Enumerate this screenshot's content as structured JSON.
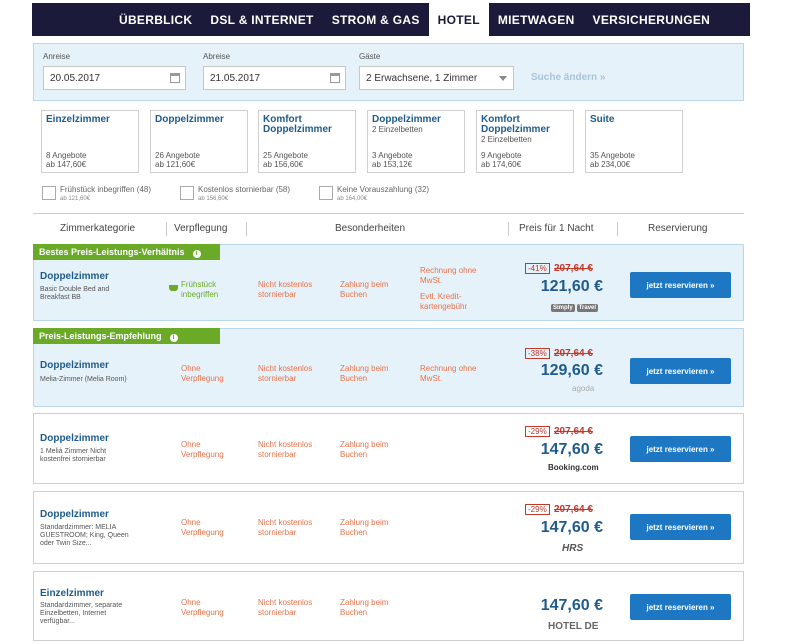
{
  "nav": {
    "tabs": [
      "ÜBERBLICK",
      "DSL & INTERNET",
      "STROM & GAS",
      "HOTEL",
      "MIETWAGEN",
      "VERSICHERUNGEN"
    ]
  },
  "search": {
    "arrival_label": "Anreise",
    "arrival_value": "20.05.2017",
    "departure_label": "Abreise",
    "departure_value": "21.05.2017",
    "guests_label": "Gäste",
    "guests_value": "2 Erwachsene, 1 Zimmer",
    "change_label": "Suche ändern »"
  },
  "room_types": [
    {
      "name": "Einzelzimmer",
      "sub": "",
      "count": "8 Angebote",
      "from": "ab 147,60€"
    },
    {
      "name": "Doppelzimmer",
      "sub": "",
      "count": "26 Angebote",
      "from": "ab 121,60€"
    },
    {
      "name": "Komfort Doppelzimmer",
      "sub": "",
      "count": "25 Angebote",
      "from": "ab 156,60€"
    },
    {
      "name": "Doppelzimmer",
      "sub": "2 Einzelbetten",
      "count": "3 Angebote",
      "from": "ab 153,12€"
    },
    {
      "name": "Komfort Doppelzimmer",
      "sub": "2 Einzelbetten",
      "count": "9 Angebote",
      "from": "ab 174,60€"
    },
    {
      "name": "Suite",
      "sub": "",
      "count": "35 Angebote",
      "from": "ab 234,00€"
    }
  ],
  "filters": [
    {
      "label": "Frühstück inbegriffen (48)",
      "price": "ab 121,60€"
    },
    {
      "label": "Kostenlos stornierbar (58)",
      "price": "ab 156,60€"
    },
    {
      "label": "Keine Vorauszahlung (32)",
      "price": "ab 164,00€"
    }
  ],
  "columns": {
    "category": "Zimmerkategorie",
    "board": "Verpflegung",
    "features": "Besonderheiten",
    "price": "Preis für 1 Nacht",
    "reservation": "Reservierung"
  },
  "offers": [
    {
      "label": "Bestes Preis-Leistungs-Verhältnis",
      "name": "Doppelzimmer",
      "desc": "Basic Double Bed and Breakfast BB",
      "board": "Frühstück inbegriffen",
      "cancel": "Nicht kostenlos stornierbar",
      "payment": "Zahlung beim Buchen",
      "invoice": "Rechnung ohne MwSt.",
      "extra": "Evtl. Kredit-kartengebühr",
      "discount": "-41%",
      "old_price": "207,64 €",
      "price": "121,60 €",
      "tags": [
        "Simply",
        "Travel"
      ],
      "button": "jetzt reservieren »"
    },
    {
      "label": "Preis-Leistungs-Empfehlung",
      "name": "Doppelzimmer",
      "desc": "Melia-Zimmer (Melia Room)",
      "board": "Ohne Verpflegung",
      "cancel": "Nicht kostenlos stornierbar",
      "payment": "Zahlung beim Buchen",
      "invoice": "Rechnung ohne MwSt.",
      "discount": "-38%",
      "old_price": "207,64 €",
      "price": "129,60 €",
      "brand": "agoda",
      "button": "jetzt reservieren »"
    },
    {
      "name": "Doppelzimmer",
      "desc": "1 Meliá Zimmer Nicht kostenfrei stornierbar",
      "board": "Ohne Verpflegung",
      "cancel": "Nicht kostenlos stornierbar",
      "payment": "Zahlung beim Buchen",
      "discount": "-29%",
      "old_price": "207,64 €",
      "price": "147,60 €",
      "brand": "Booking.com",
      "button": "jetzt reservieren »"
    },
    {
      "name": "Doppelzimmer",
      "desc": "Standardzimmer: MELIA GUESTROOM; King, Queen oder Twin Size...",
      "board": "Ohne Verpflegung",
      "cancel": "Nicht kostenlos stornierbar",
      "payment": "Zahlung beim Buchen",
      "discount": "-29%",
      "old_price": "207,64 €",
      "price": "147,60 €",
      "brand": "HRS",
      "button": "jetzt reservieren »"
    },
    {
      "name": "Einzelzimmer",
      "desc": "Standardzimmer, separate Einzelbetten, Internet verfügbar...",
      "board": "Ohne Verpflegung",
      "cancel": "Nicht kostenlos stornierbar",
      "payment": "Zahlung beim Buchen",
      "price": "147,60 €",
      "brand": "HOTEL DE",
      "button": "jetzt reservieren »"
    }
  ]
}
